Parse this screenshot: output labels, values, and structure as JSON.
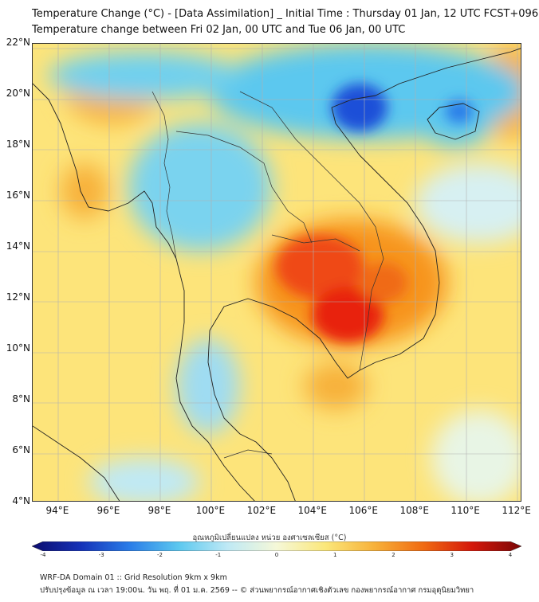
{
  "header": {
    "title_line1": "Temperature Change (°C) - [Data Assimilation] _ Initial Time : Thursday 01 Jan, 12 UTC FCST+096",
    "title_line2": "Temperature change between Fri 02 Jan, 00 UTC and Tue 06 Jan, 00 UTC"
  },
  "map": {
    "lat_labels": [
      "22°N",
      "20°N",
      "18°N",
      "16°N",
      "14°N",
      "12°N",
      "10°N",
      "8°N",
      "6°N",
      "4°N"
    ],
    "lon_labels": [
      "94°E",
      "96°E",
      "98°E",
      "100°E",
      "102°E",
      "104°E",
      "106°E",
      "108°E",
      "110°E",
      "112°E"
    ],
    "lat_range": [
      4,
      22
    ],
    "lon_range": [
      93,
      112.2
    ],
    "colors": {
      "background": "#fde47a",
      "strong_warm": "#e8200a",
      "warm": "#f7941d",
      "cool": "#5cc8ef",
      "strong_cool": "#1e50d8",
      "coast": "#222222",
      "grid": "#b0b0b0"
    },
    "warm_areas": [
      {
        "name": "cambodia-thailand-east",
        "lon": 104.3,
        "lat": 13.2,
        "strength": "strong"
      },
      {
        "name": "myanmar-west",
        "lon": 95,
        "lat": 16.5,
        "strength": "moderate"
      },
      {
        "name": "hainan-east",
        "lon": 112,
        "lat": 21,
        "strength": "moderate"
      }
    ],
    "cool_areas": [
      {
        "name": "gulf-of-tonkin",
        "lon": 106,
        "lat": 20,
        "strength": "strong"
      },
      {
        "name": "hainan",
        "lon": 110,
        "lat": 19.5,
        "strength": "moderate"
      },
      {
        "name": "north-thailand",
        "lon": 99,
        "lat": 17.5,
        "strength": "moderate"
      }
    ]
  },
  "colorbar": {
    "title": "อุณหภูมิเปลี่ยนแปลง หน่วย องศาเซลเซียส (°C)",
    "ticks": [
      "-4",
      "-3",
      "-2",
      "-1",
      "0",
      "1",
      "2",
      "3",
      "4"
    ],
    "min": -4,
    "max": 4,
    "stops": [
      "#0c0c6e",
      "#1532b8",
      "#2a7de8",
      "#5cc8ef",
      "#bfe9f5",
      "#f5f8d8",
      "#fbe77a",
      "#f7b13a",
      "#f06a12",
      "#d4170a",
      "#7a0606"
    ]
  },
  "footer": {
    "line1": "WRF-DA Domain 01 :: Grid Resolution 9km x 9km",
    "line2": "ปรับปรุงข้อมูล ณ เวลา 19:00น. วัน พฤ. ที่ 01 ม.ค. 2569 -- © ส่วนพยากรณ์อากาศเชิงตัวเลข กองพยากรณ์อากาศ กรมอุตุนิยมวิทยา"
  }
}
